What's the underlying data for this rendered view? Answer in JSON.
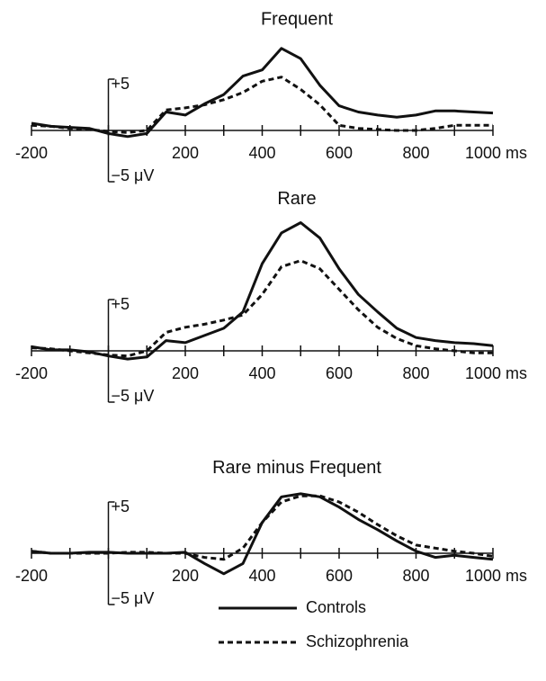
{
  "chart_data": [
    {
      "type": "line",
      "title": "Frequent",
      "x": [
        -200,
        -150,
        -100,
        -50,
        0,
        50,
        100,
        150,
        200,
        250,
        300,
        350,
        400,
        450,
        500,
        550,
        600,
        650,
        700,
        750,
        800,
        850,
        900,
        950,
        1000
      ],
      "series": [
        {
          "color": "#111111",
          "dashed": false,
          "values": [
            0.7,
            0.4,
            0.3,
            0.2,
            -0.3,
            -0.6,
            -0.3,
            1.8,
            1.5,
            2.6,
            3.5,
            5.3,
            5.9,
            8.0,
            7.0,
            4.4,
            2.4,
            1.8,
            1.5,
            1.3,
            1.5,
            1.9,
            1.9,
            1.8,
            1.7
          ]
        },
        {
          "color": "#111111",
          "dashed": true,
          "values": [
            0.5,
            0.4,
            0.2,
            0.1,
            -0.1,
            -0.2,
            0,
            2.0,
            2.2,
            2.5,
            3.0,
            3.7,
            4.8,
            5.2,
            4.0,
            2.5,
            0.5,
            0.2,
            0.1,
            0,
            0,
            0.2,
            0.5,
            0.5,
            0.5
          ]
        }
      ],
      "xlim": [
        -200,
        1000
      ],
      "xticks": [
        -200,
        200,
        400,
        600,
        800,
        {
          "value": 1000,
          "label": "1000 ms"
        }
      ],
      "xminorticks": [
        -100,
        0,
        100,
        300,
        500,
        700,
        900
      ],
      "ylim": [
        -5,
        9
      ],
      "yticks": [
        {
          "value": 5,
          "label": "+5"
        },
        {
          "value": -5,
          "label": "−5 μV"
        }
      ]
    },
    {
      "type": "line",
      "title": "Rare",
      "x": [
        -200,
        -150,
        -100,
        -50,
        0,
        50,
        100,
        150,
        200,
        250,
        300,
        350,
        400,
        450,
        500,
        550,
        600,
        650,
        700,
        750,
        800,
        850,
        900,
        950,
        1000
      ],
      "series": [
        {
          "color": "#111111",
          "dashed": false,
          "values": [
            0.4,
            0.1,
            0.1,
            -0.1,
            -0.5,
            -0.8,
            -0.6,
            1.0,
            0.8,
            1.5,
            2.2,
            3.8,
            8.5,
            11.5,
            12.5,
            11.0,
            8.0,
            5.5,
            3.8,
            2.2,
            1.3,
            1.0,
            0.8,
            0.7,
            0.5
          ]
        },
        {
          "color": "#111111",
          "dashed": true,
          "values": [
            0.3,
            0.2,
            0,
            -0.2,
            -0.4,
            -0.5,
            0,
            1.8,
            2.3,
            2.6,
            3.0,
            3.5,
            5.5,
            8.2,
            8.8,
            8.0,
            6.0,
            4.0,
            2.3,
            1.2,
            0.5,
            0.2,
            0,
            -0.2,
            -0.2
          ]
        }
      ],
      "xlim": [
        -200,
        1000
      ],
      "xticks": [
        -200,
        200,
        400,
        600,
        800,
        {
          "value": 1000,
          "label": "1000 ms"
        }
      ],
      "xminorticks": [
        -100,
        0,
        100,
        300,
        500,
        700,
        900
      ],
      "ylim": [
        -5,
        13
      ],
      "yticks": [
        {
          "value": 5,
          "label": "+5"
        },
        {
          "value": -5,
          "label": "−5 μV"
        }
      ]
    },
    {
      "type": "line",
      "title": "Rare minus Frequent",
      "x": [
        -200,
        -150,
        -100,
        -50,
        0,
        50,
        100,
        150,
        200,
        250,
        300,
        350,
        400,
        450,
        500,
        550,
        600,
        650,
        700,
        750,
        800,
        850,
        900,
        950,
        1000
      ],
      "series": [
        {
          "name": "Controls",
          "color": "#111111",
          "dashed": false,
          "values": [
            0.2,
            0,
            0,
            0.1,
            0.1,
            0,
            0,
            0,
            0.1,
            -1.0,
            -2.0,
            -1.0,
            3.0,
            5.5,
            5.8,
            5.5,
            4.5,
            3.3,
            2.3,
            1.2,
            0.2,
            -0.4,
            -0.2,
            -0.4,
            -0.6
          ]
        },
        {
          "name": "Schizophrenia",
          "color": "#111111",
          "dashed": true,
          "values": [
            0.2,
            0,
            0,
            0,
            0,
            0.1,
            0.1,
            0,
            0,
            -0.4,
            -0.6,
            0.5,
            3.0,
            5.0,
            5.6,
            5.6,
            5.0,
            4.0,
            2.8,
            1.7,
            0.8,
            0.5,
            0.2,
            0,
            -0.3
          ]
        }
      ],
      "xlim": [
        -200,
        1000
      ],
      "xticks": [
        -200,
        200,
        400,
        600,
        800,
        {
          "value": 1000,
          "label": "1000 ms"
        }
      ],
      "xminorticks": [
        -100,
        0,
        100,
        300,
        500,
        700,
        900
      ],
      "ylim": [
        -5,
        6.5
      ],
      "yticks": [
        {
          "value": 5,
          "label": "+5"
        },
        {
          "value": -5,
          "label": "−5 μV"
        }
      ],
      "legend": true
    }
  ]
}
